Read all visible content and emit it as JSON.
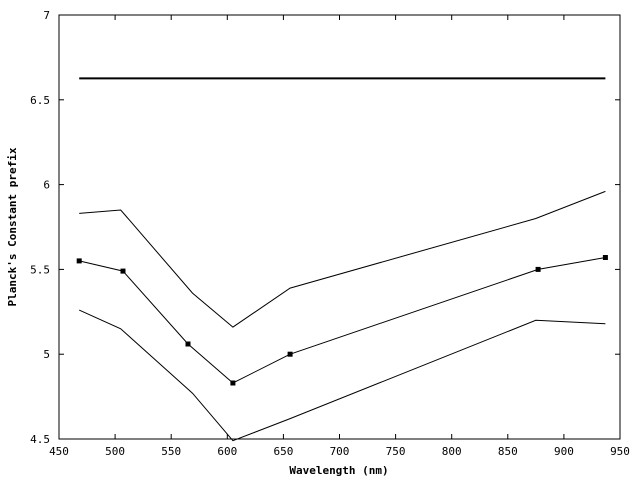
{
  "chart_data": {
    "type": "line",
    "title": "",
    "xlabel": "Wavelength (nm)",
    "ylabel": "Planck's Constant prefix",
    "xlim": [
      450,
      950
    ],
    "ylim": [
      4.5,
      7
    ],
    "xticks": [
      "450",
      "500",
      "550",
      "600",
      "650",
      "700",
      "750",
      "800",
      "850",
      "900",
      "950"
    ],
    "yticks": [
      "4.5",
      "5",
      "5.5",
      "6",
      "6.5",
      "7"
    ],
    "grid": false,
    "legend": "none",
    "series": [
      {
        "role": "accepted-value",
        "x": [
          468,
          937
        ],
        "y": [
          6.626,
          6.626
        ],
        "color": "#000000",
        "markers": false
      },
      {
        "role": "upper-bound",
        "x": [
          468,
          505,
          569,
          605,
          656,
          875,
          937
        ],
        "y": [
          5.83,
          5.85,
          5.36,
          5.16,
          5.39,
          5.8,
          5.96
        ],
        "color": "#000000",
        "markers": false
      },
      {
        "role": "measured",
        "x": [
          468,
          507,
          565,
          605,
          656,
          877,
          937
        ],
        "y": [
          5.55,
          5.49,
          5.06,
          4.83,
          5.0,
          5.5,
          5.57
        ],
        "color": "#000000",
        "markers": true
      },
      {
        "role": "lower-bound",
        "x": [
          468,
          505,
          569,
          605,
          656,
          875,
          937
        ],
        "y": [
          5.26,
          5.15,
          4.77,
          4.49,
          4.62,
          5.2,
          5.18
        ],
        "color": "#000000",
        "markers": false
      }
    ]
  }
}
